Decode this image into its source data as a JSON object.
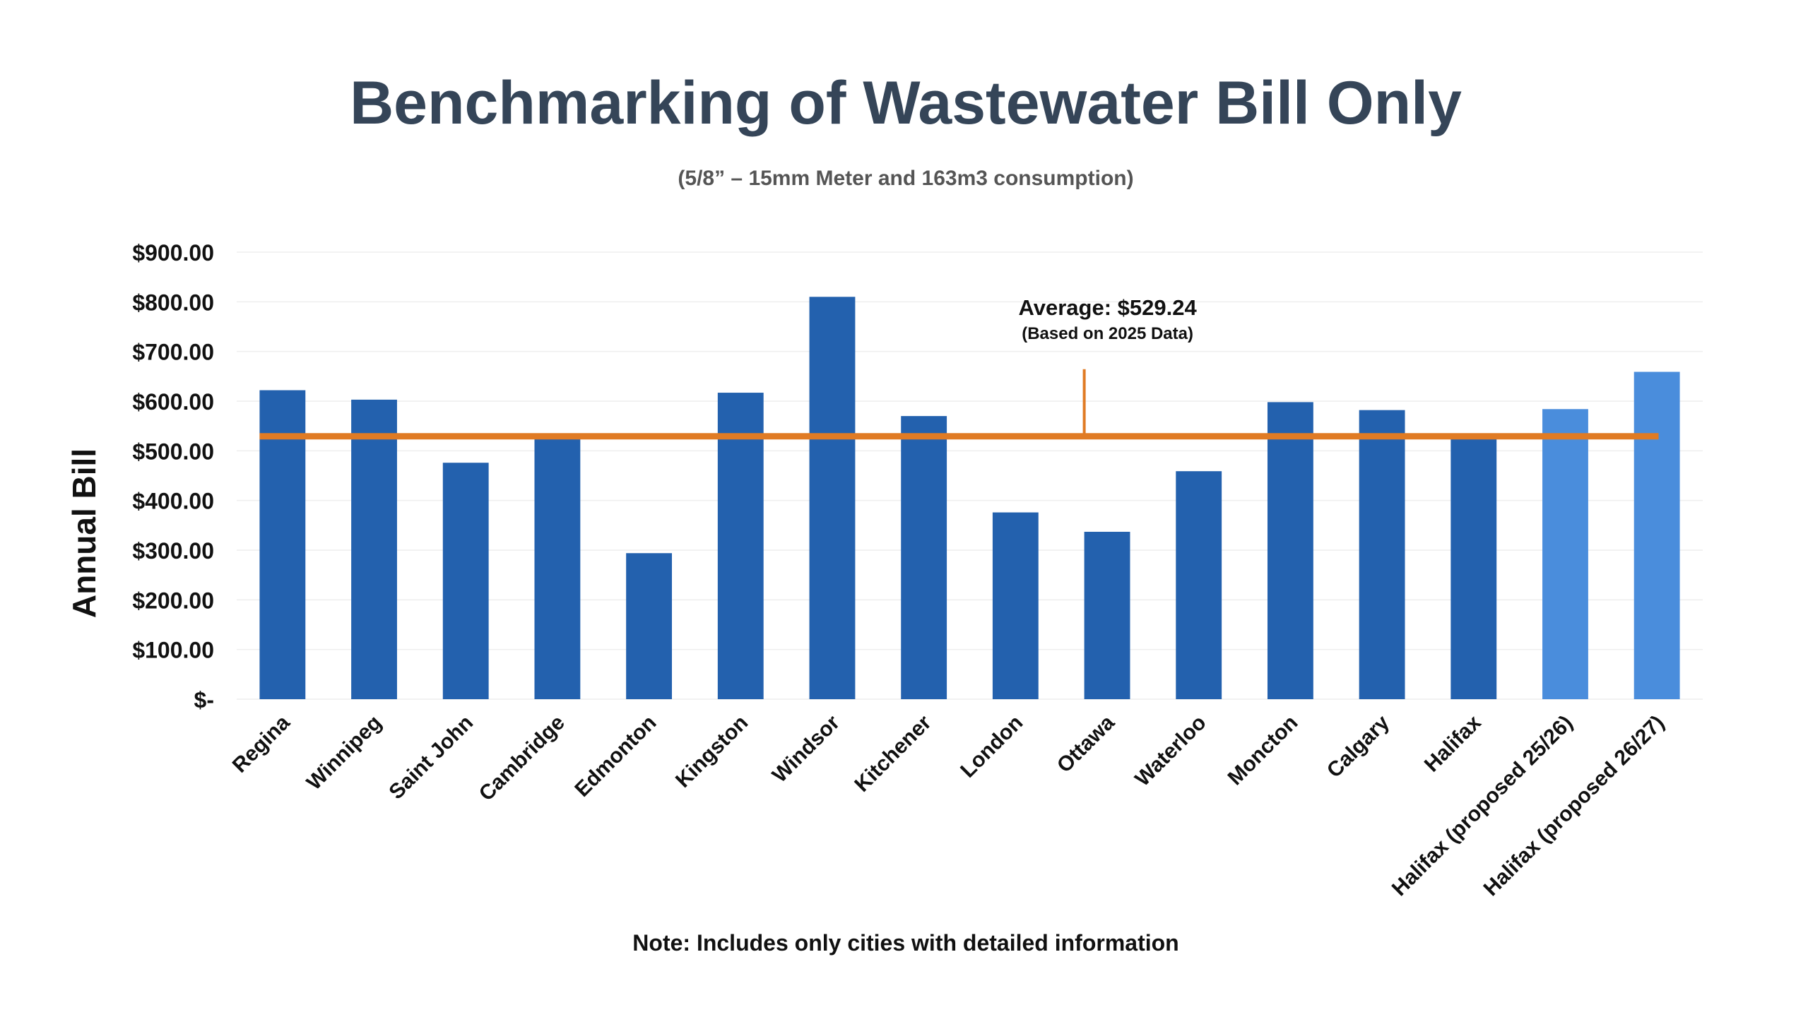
{
  "chart_data": {
    "type": "bar",
    "title": "Benchmarking of Wastewater Bill Only",
    "subtitle": "(5/8” – 15mm Meter and 163m3 consumption)",
    "ylabel": "Annual Bill",
    "xlabel": "",
    "ylim": [
      0,
      900
    ],
    "yticks": [
      {
        "value": 900,
        "label": "$900.00"
      },
      {
        "value": 800,
        "label": "$800.00"
      },
      {
        "value": 700,
        "label": "$700.00"
      },
      {
        "value": 600,
        "label": "$600.00"
      },
      {
        "value": 500,
        "label": "$500.00"
      },
      {
        "value": 400,
        "label": "$400.00"
      },
      {
        "value": 300,
        "label": "$300.00"
      },
      {
        "value": 200,
        "label": "$200.00"
      },
      {
        "value": 100,
        "label": "$100.00"
      },
      {
        "value": 0,
        "label": "$-"
      }
    ],
    "categories": [
      "Regina",
      "Winnipeg",
      "Saint John",
      "Cambridge",
      "Edmonton",
      "Kingston",
      "Windsor",
      "Kitchener",
      "London",
      "Ottawa",
      "Waterloo",
      "Moncton",
      "Calgary",
      "Halifax",
      "Halifax (proposed 25/26)",
      "Halifax (proposed 26/27)"
    ],
    "values": [
      622,
      603,
      476,
      533,
      294,
      617,
      810,
      570,
      376,
      337,
      459,
      598,
      582,
      533,
      584,
      659
    ],
    "bar_colors": [
      "#2361ae",
      "#2361ae",
      "#2361ae",
      "#2361ae",
      "#2361ae",
      "#2361ae",
      "#2361ae",
      "#2361ae",
      "#2361ae",
      "#2361ae",
      "#2361ae",
      "#2361ae",
      "#2361ae",
      "#2361ae",
      "#4a8ddc",
      "#4a8ddc"
    ],
    "average": {
      "value": 529.24,
      "label": "Average: $529.24",
      "sublabel": "(Based on 2025 Data)",
      "color": "#e07b24"
    },
    "grid": true,
    "note": "Note: Includes only cities with detailed information"
  }
}
